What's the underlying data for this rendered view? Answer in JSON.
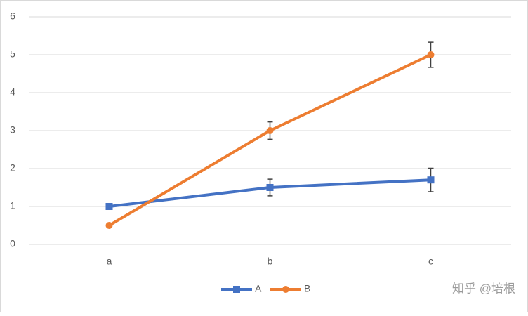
{
  "chart_data": {
    "type": "line",
    "categories": [
      "a",
      "b",
      "c"
    ],
    "series": [
      {
        "name": "A",
        "color": "#4472c4",
        "marker": "square",
        "values": [
          1,
          1.5,
          1.7
        ],
        "errors": [
          null,
          0.22,
          0.31
        ]
      },
      {
        "name": "B",
        "color": "#ed7d31",
        "marker": "circle",
        "values": [
          0.5,
          3,
          5
        ],
        "errors": [
          null,
          0.23,
          0.33
        ]
      }
    ],
    "ylim": [
      0,
      6
    ],
    "yticks": [
      0,
      1,
      2,
      3,
      4,
      5,
      6
    ],
    "grid": true,
    "legend": "bottom"
  },
  "watermark": "知乎 @培根"
}
